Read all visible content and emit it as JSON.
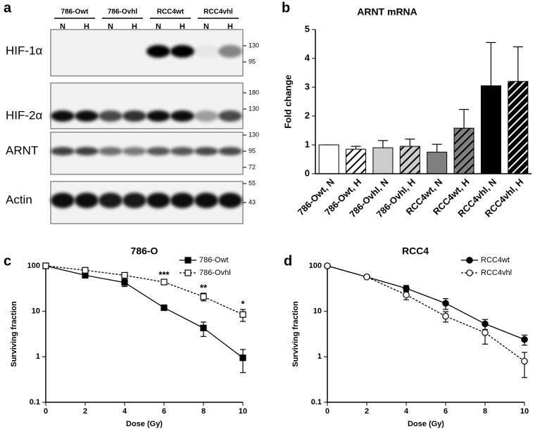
{
  "blot": {
    "panel": "a",
    "groups": [
      "786-Owt",
      "786-Ovhl",
      "RCC4wt",
      "RCC4vhl"
    ],
    "lanes": [
      "N",
      "H",
      "N",
      "H",
      "N",
      "H",
      "N",
      "H"
    ],
    "rows": [
      {
        "label": "HIF-1α",
        "markers": [
          130,
          95
        ]
      },
      {
        "label": "HIF-2α",
        "markers": [
          180,
          130
        ]
      },
      {
        "label": "ARNT",
        "markers": [
          130,
          95,
          72
        ]
      },
      {
        "label": "Actin",
        "markers": [
          55,
          43
        ]
      }
    ]
  },
  "chart_data": [
    {
      "type": "bar",
      "panel": "b",
      "title": "ARNT mRNA",
      "y_label": "Fold change",
      "categories": [
        "786-Owt, N",
        "786-Owt, H",
        "786-Ovhl, N",
        "786-Ovhl, H",
        "RCC4wt, N",
        "RCC4wt, H",
        "RCC4vhl, N",
        "RCC4vhl, H"
      ],
      "values": [
        1,
        0.85,
        0.9,
        0.95,
        0.75,
        1.58,
        3.05,
        3.2
      ],
      "errors": [
        0,
        0.1,
        0.25,
        0.25,
        0.27,
        0.65,
        1.5,
        1.2
      ],
      "colors": [
        "#ffffff",
        "#ffffff",
        "#cccccc",
        "#cccccc",
        "#808080",
        "#808080",
        "#000000",
        "#000000"
      ],
      "hatched": [
        false,
        true,
        false,
        true,
        false,
        true,
        false,
        true
      ],
      "ylim": [
        0,
        5
      ],
      "yticks": [
        0,
        1,
        2,
        3,
        4,
        5
      ]
    },
    {
      "type": "line",
      "panel": "c",
      "title": "786-O",
      "x_label": "Dose (Gy)",
      "y_label": "Surviving fraction",
      "x": [
        0,
        2,
        4,
        6,
        8,
        10
      ],
      "series": [
        {
          "name": "786-Owt",
          "color": "#000000",
          "marker": "square",
          "filled": true,
          "dashed": false,
          "values": [
            100,
            62,
            43,
            12,
            4.3,
            0.95
          ],
          "errors": [
            0,
            5,
            8,
            1,
            1.5,
            0.5
          ]
        },
        {
          "name": "786-Ovhl",
          "color": "#000000",
          "marker": "square",
          "filled": false,
          "dashed": true,
          "values": [
            100,
            80,
            62,
            44,
            21,
            8.5
          ],
          "errors": [
            0,
            5,
            5,
            4,
            4,
            2.5
          ]
        }
      ],
      "annotations": [
        {
          "text": "***",
          "x": 6
        },
        {
          "text": "**",
          "x": 8
        },
        {
          "text": "*",
          "x": 10
        }
      ],
      "xlim": [
        0,
        10
      ],
      "xticks": [
        0,
        2,
        4,
        6,
        8,
        10
      ],
      "ylim": [
        0.1,
        100
      ],
      "yticks": [
        0.1,
        1,
        10,
        100
      ],
      "log_y": true,
      "legend": "top-right"
    },
    {
      "type": "line",
      "panel": "d",
      "title": "RCC4",
      "x_label": "Dose (Gy)",
      "y_label": "Surviving fraction",
      "x": [
        0,
        2,
        4,
        6,
        8,
        10
      ],
      "series": [
        {
          "name": "RCC4wt",
          "color": "#000000",
          "marker": "circle",
          "filled": true,
          "dashed": false,
          "values": [
            100,
            57,
            32,
            15,
            5.3,
            2.4
          ],
          "errors": [
            0,
            3,
            5,
            4,
            1.3,
            0.6
          ]
        },
        {
          "name": "RCC4vhl",
          "color": "#000000",
          "marker": "circle",
          "filled": false,
          "dashed": true,
          "values": [
            100,
            57,
            23,
            7.8,
            3.4,
            0.8
          ],
          "errors": [
            0,
            3,
            5,
            2,
            1.5,
            0.45
          ]
        }
      ],
      "xlim": [
        0,
        10
      ],
      "xticks": [
        0,
        2,
        4,
        6,
        8,
        10
      ],
      "ylim": [
        0.1,
        100
      ],
      "yticks": [
        0.1,
        1,
        10,
        100
      ],
      "log_y": true,
      "legend": "top-right"
    }
  ]
}
